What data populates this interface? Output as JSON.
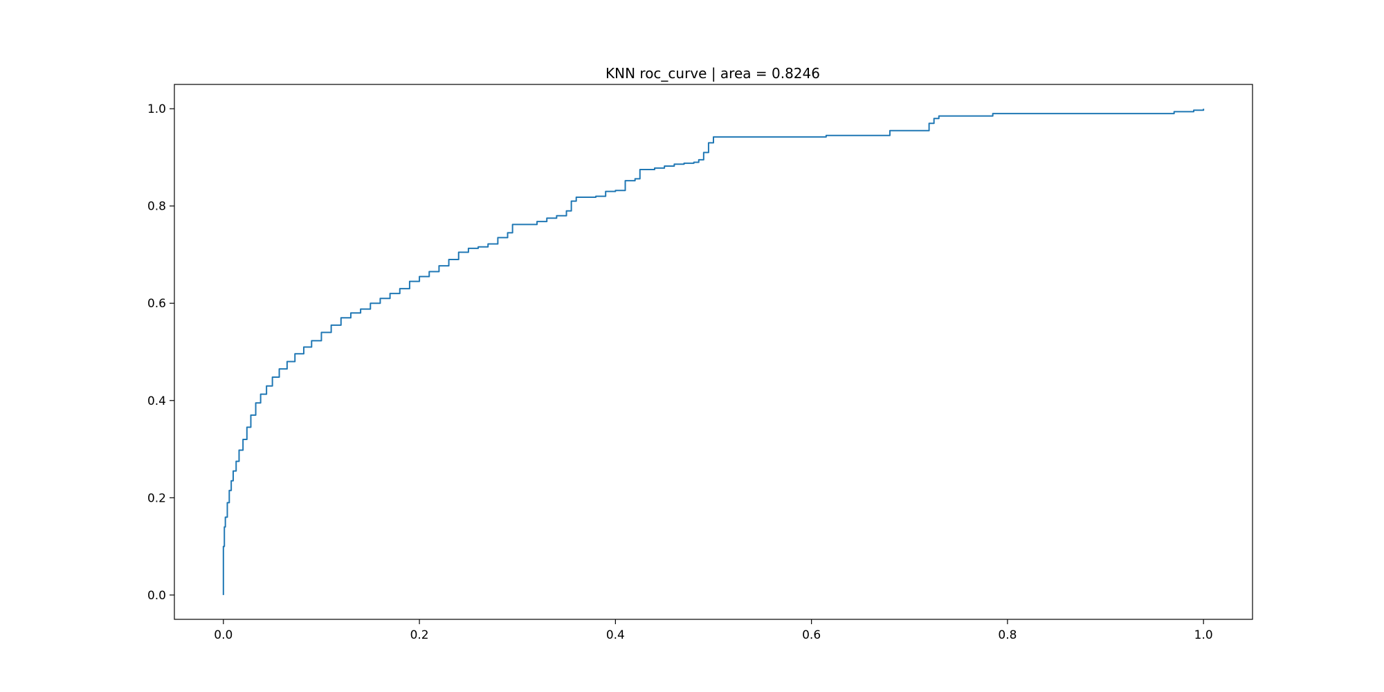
{
  "chart_data": {
    "type": "line",
    "title": "KNN  roc_curve | area = 0.8246",
    "xlabel": "",
    "ylabel": "",
    "xlim": [
      -0.05,
      1.05
    ],
    "ylim": [
      -0.05,
      1.05
    ],
    "xticks": [
      "0.0",
      "0.2",
      "0.4",
      "0.6",
      "0.8",
      "1.0"
    ],
    "yticks": [
      "0.0",
      "0.2",
      "0.4",
      "0.6",
      "0.8",
      "1.0"
    ],
    "grid": false,
    "legend": "none",
    "line_color": "#1f77b4",
    "series": [
      {
        "x": [
          0.0,
          0.0,
          0.001,
          0.002,
          0.004,
          0.006,
          0.008,
          0.01,
          0.013,
          0.016,
          0.02,
          0.024,
          0.028,
          0.033,
          0.038,
          0.044,
          0.05,
          0.057,
          0.065,
          0.073,
          0.082,
          0.09,
          0.1,
          0.11,
          0.12,
          0.13,
          0.14,
          0.15,
          0.16,
          0.17,
          0.18,
          0.19,
          0.2,
          0.21,
          0.22,
          0.23,
          0.24,
          0.25,
          0.26,
          0.27,
          0.28,
          0.29,
          0.295,
          0.31,
          0.32,
          0.33,
          0.34,
          0.35,
          0.355,
          0.36,
          0.38,
          0.39,
          0.4,
          0.41,
          0.42,
          0.425,
          0.44,
          0.45,
          0.46,
          0.47,
          0.48,
          0.485,
          0.49,
          0.495,
          0.5,
          0.55,
          0.615,
          0.655,
          0.68,
          0.72,
          0.725,
          0.73,
          0.785,
          0.94,
          0.97,
          0.99,
          1.0
        ],
        "y": [
          0.0,
          0.1,
          0.14,
          0.16,
          0.19,
          0.215,
          0.235,
          0.255,
          0.275,
          0.298,
          0.32,
          0.345,
          0.37,
          0.395,
          0.413,
          0.43,
          0.448,
          0.465,
          0.48,
          0.496,
          0.51,
          0.523,
          0.54,
          0.555,
          0.57,
          0.58,
          0.588,
          0.6,
          0.61,
          0.62,
          0.63,
          0.645,
          0.655,
          0.665,
          0.677,
          0.69,
          0.705,
          0.713,
          0.716,
          0.722,
          0.735,
          0.745,
          0.762,
          0.762,
          0.768,
          0.775,
          0.78,
          0.79,
          0.81,
          0.818,
          0.82,
          0.83,
          0.832,
          0.852,
          0.856,
          0.875,
          0.878,
          0.882,
          0.886,
          0.888,
          0.89,
          0.895,
          0.91,
          0.93,
          0.942,
          0.942,
          0.945,
          0.945,
          0.955,
          0.97,
          0.98,
          0.985,
          0.99,
          0.99,
          0.994,
          0.997,
          1.0
        ]
      }
    ]
  }
}
